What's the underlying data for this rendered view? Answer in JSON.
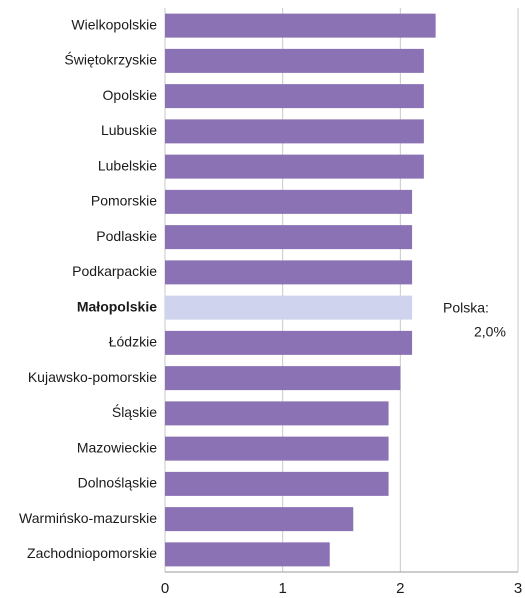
{
  "chart_data": {
    "type": "barh",
    "categories": [
      "Wielkopolskie",
      "Świętokrzyskie",
      "Opolskie",
      "Lubuskie",
      "Lubelskie",
      "Pomorskie",
      "Podlaskie",
      "Podkarpackie",
      "Małopolskie",
      "Łódzkie",
      "Kujawsko-pomorskie",
      "Śląskie",
      "Mazowieckie",
      "Dolnośląskie",
      "Warmińsko-mazurskie",
      "Zachodniopomorskie"
    ],
    "values": [
      2.3,
      2.2,
      2.2,
      2.2,
      2.2,
      2.1,
      2.1,
      2.1,
      2.1,
      2.1,
      2.0,
      1.9,
      1.9,
      1.9,
      1.6,
      1.4
    ],
    "color": "#8a72b4",
    "colors": [
      "#8a72b4",
      "#8a72b4",
      "#8a72b4",
      "#8a72b4",
      "#8a72b4",
      "#8a72b4",
      "#8a72b4",
      "#8a72b4",
      "#d0d3ee",
      "#8a72b4",
      "#8a72b4",
      "#8a72b4",
      "#8a72b4",
      "#8a72b4",
      "#8a72b4",
      "#8a72b4"
    ],
    "xlim": [
      0,
      3
    ],
    "xticks": [
      0,
      1,
      2,
      3
    ],
    "grid": true,
    "annotation": [
      "Polska:",
      "2,0%"
    ]
  }
}
